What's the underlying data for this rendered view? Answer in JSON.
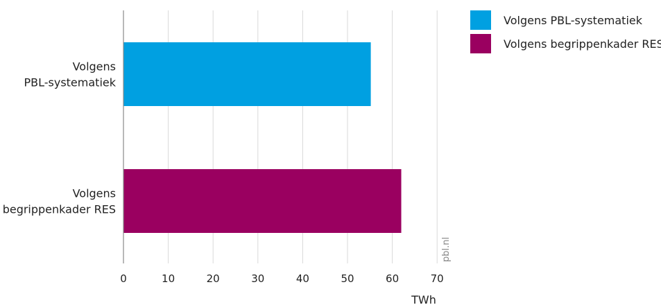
{
  "chart_data": {
    "type": "bar",
    "orientation": "horizontal",
    "categories": [
      "Volgens PBL-systematiek",
      "Volgens begrippenkader RES"
    ],
    "category_label_lines": [
      [
        "Volgens",
        "PBL-systematiek"
      ],
      [
        "Volgens",
        "begrippenkader RES"
      ]
    ],
    "values": [
      55.2,
      62
    ],
    "colors": [
      "#00a0e1",
      "#9a0060"
    ],
    "xlim": [
      0,
      70
    ],
    "xticks": [
      0,
      10,
      20,
      30,
      40,
      50,
      60,
      70
    ],
    "xlabel": "TWh",
    "grid": true,
    "legend_position": "top-right",
    "legend": [
      {
        "label": "Volgens PBL-systematiek",
        "color": "#00a0e1"
      },
      {
        "label": "Volgens begrippenkader RES",
        "color": "#9a0060"
      }
    ],
    "watermark": "pbl.nl"
  }
}
